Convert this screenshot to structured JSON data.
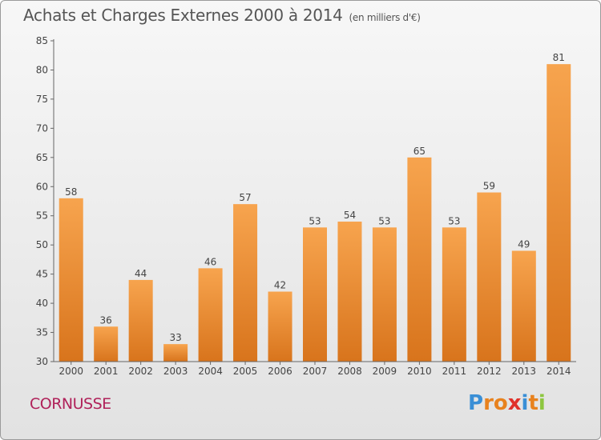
{
  "title": "Achats et Charges Externes 2000 à 2014",
  "subtitle": "(en milliers d'€)",
  "place": "CORNUSSE",
  "logo": {
    "text": "Proxiti",
    "letter_colors": [
      "#3a8fd6",
      "#e8821e",
      "#e8821e",
      "#e0312a",
      "#3a8fd6",
      "#e8821e",
      "#8dc63f"
    ]
  },
  "colors": {
    "bar_light": "#f7a44e",
    "bar_dark": "#d8741c",
    "axis": "#666666",
    "text": "#444444",
    "place": "#b0225a"
  },
  "chart_data": {
    "type": "bar",
    "title": "Achats et Charges Externes 2000 à 2014",
    "subtitle": "(en milliers d'€)",
    "categories": [
      "2000",
      "2001",
      "2002",
      "2003",
      "2004",
      "2005",
      "2006",
      "2007",
      "2008",
      "2009",
      "2010",
      "2011",
      "2012",
      "2013",
      "2014"
    ],
    "values": [
      58,
      36,
      44,
      33,
      46,
      57,
      42,
      53,
      54,
      53,
      65,
      53,
      59,
      49,
      81
    ],
    "ylim": [
      30,
      85
    ],
    "yticks": [
      30,
      35,
      40,
      45,
      50,
      55,
      60,
      65,
      70,
      75,
      80,
      85
    ],
    "data_labels": true,
    "grid": false
  }
}
